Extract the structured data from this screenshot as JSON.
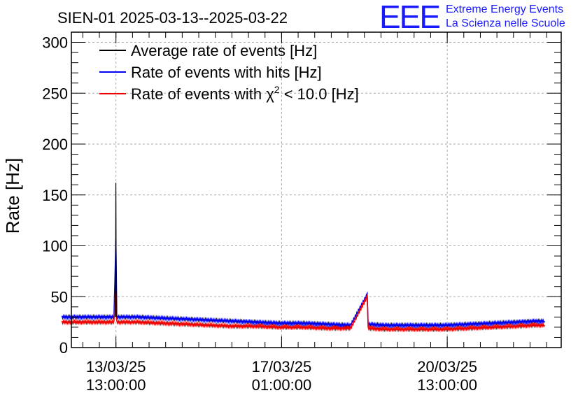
{
  "header": {
    "title": "SIEN-01 2025-03-13--2025-03-22",
    "logo_mark": "EEE",
    "logo_line1": "Extreme Energy Events",
    "logo_line2": "La Scienza nelle Scuole"
  },
  "colors": {
    "average": "#000000",
    "hits": "#0000ee",
    "chi2": "#ee0000",
    "logo": "#1a1aff",
    "grid": "#aaaaaa"
  },
  "chart_data": {
    "type": "line",
    "title": "SIEN-01 2025-03-13--2025-03-22",
    "ylabel": "Rate [Hz]",
    "xlabel": "",
    "xunit": "days since 2025-03-13 00:00",
    "xlim": [
      -0.4,
      9.95
    ],
    "ylim": [
      0,
      310
    ],
    "grid": true,
    "legend_position": "top-left",
    "y_ticks": [
      0,
      50,
      100,
      150,
      200,
      250,
      300
    ],
    "x_ticks": [
      {
        "x": 0.5417,
        "line1": "13/03/25",
        "line2": "13:00:00"
      },
      {
        "x": 4.0417,
        "line1": "17/03/25",
        "line2": "01:00:00"
      },
      {
        "x": 7.5417,
        "line1": "20/03/25",
        "line2": "13:00:00"
      }
    ],
    "legend": [
      {
        "key": "average",
        "label": "Average rate of events [Hz]"
      },
      {
        "key": "hits",
        "label": "Rate of events with hits [Hz]"
      },
      {
        "key": "chi2",
        "label_pre": "Rate of events with ",
        "label_chi": "χ",
        "label_sup": "2",
        "label_post": " < 10.0 [Hz]"
      }
    ],
    "series": [
      {
        "name": "Rate of events with hits [Hz]",
        "key": "hits",
        "x": [
          -0.6,
          0.0,
          0.5,
          0.54,
          0.56,
          1.0,
          1.5,
          2.0,
          2.5,
          3.0,
          3.5,
          4.0,
          4.5,
          5.0,
          5.5,
          5.85,
          5.87,
          6.2,
          6.6,
          7.0,
          7.5,
          8.0,
          8.5,
          9.0,
          9.4,
          9.6
        ],
        "y": [
          30,
          30,
          30,
          105,
          30,
          30,
          29,
          28,
          27,
          26,
          25,
          24,
          24,
          23,
          22,
          52,
          23,
          22,
          22,
          22,
          22,
          23,
          24,
          25,
          26,
          26
        ]
      },
      {
        "name": "Rate of events with χ2 < 10.0 [Hz]",
        "key": "chi2",
        "x": [
          -0.6,
          0.0,
          0.5,
          0.54,
          0.56,
          1.0,
          1.5,
          2.0,
          2.5,
          3.0,
          3.5,
          4.0,
          4.5,
          5.0,
          5.5,
          5.85,
          5.87,
          6.2,
          6.6,
          7.0,
          7.5,
          8.0,
          8.5,
          9.0,
          9.4,
          9.6
        ],
        "y": [
          25,
          25,
          25,
          60,
          25,
          25,
          24,
          23,
          22,
          21,
          21,
          20,
          20,
          19,
          19,
          50,
          19,
          18,
          18,
          18,
          18,
          19,
          20,
          21,
          22,
          22
        ]
      },
      {
        "name": "Average rate of events [Hz]",
        "key": "average",
        "x": [
          0.53,
          0.54,
          0.55
        ],
        "y": [
          30,
          162,
          30
        ]
      }
    ]
  }
}
